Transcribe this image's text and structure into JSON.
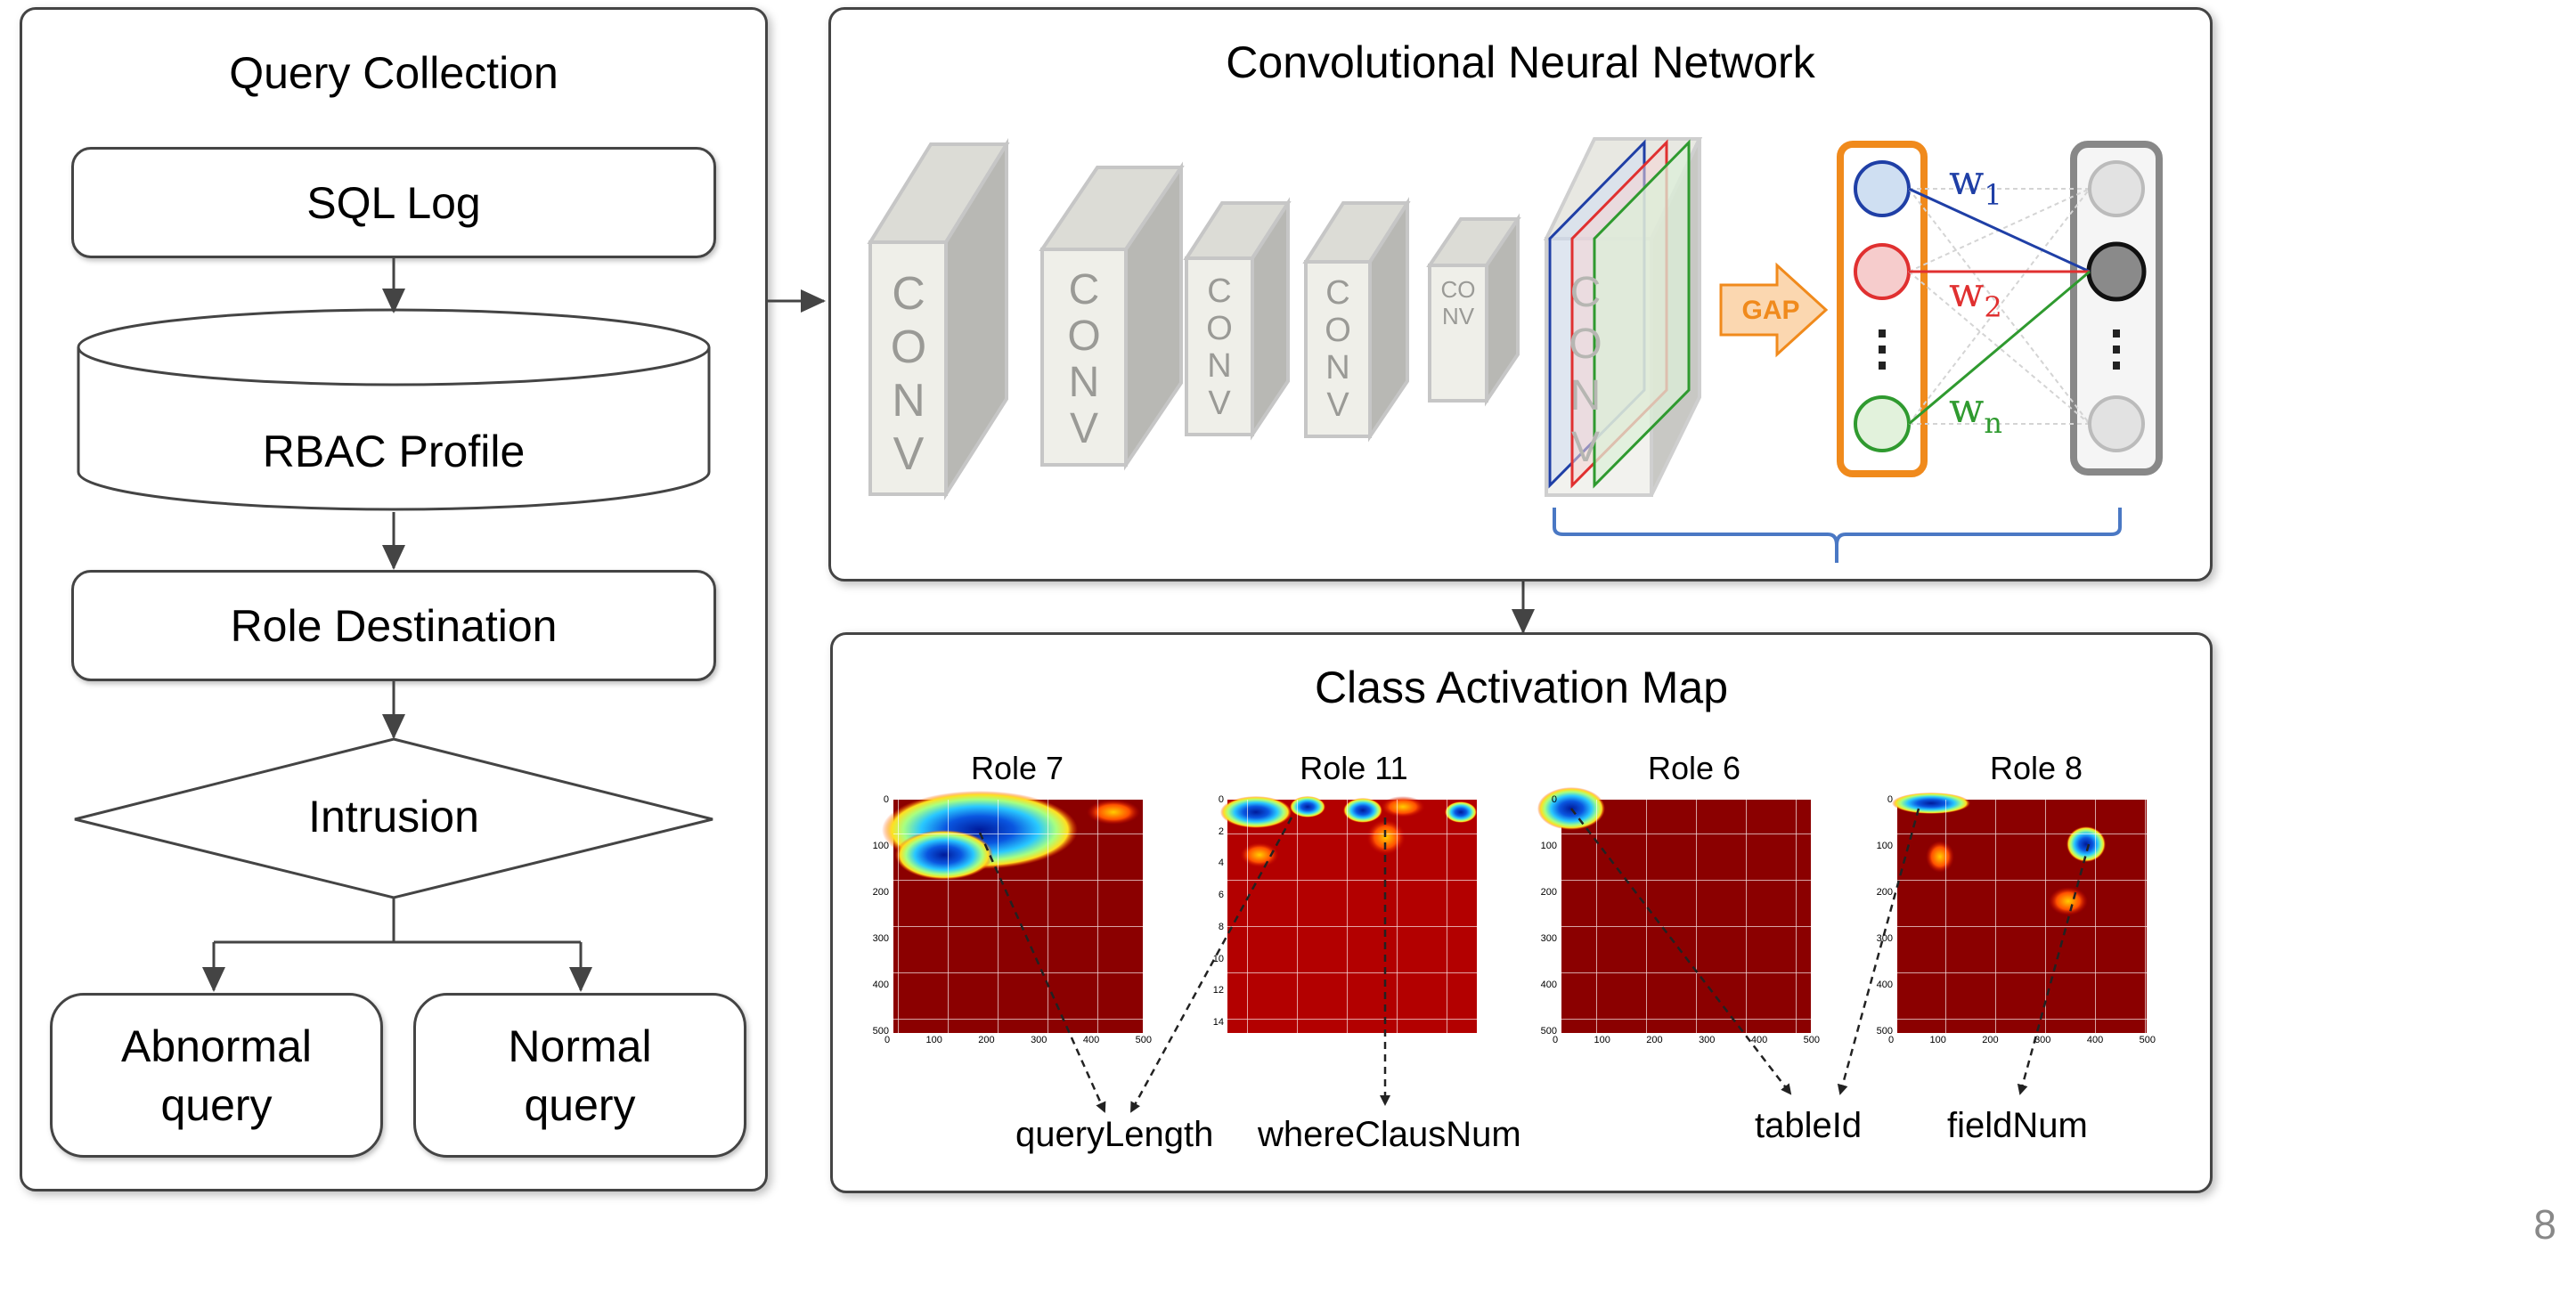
{
  "page_number": "8",
  "query_collection": {
    "title": "Query Collection",
    "sql_log": "SQL Log",
    "rbac_profile": "RBAC Profile",
    "role_destination": "Role Destination",
    "intrusion": "Intrusion",
    "abnormal_query": "Abnormal\nquery",
    "normal_query": "Normal\nquery"
  },
  "cnn": {
    "title": "Convolutional Neural Network",
    "conv_label": "CONV",
    "gap_label": "GAP",
    "weights": {
      "w1": "w",
      "w1_sub": "1",
      "w2": "w",
      "w2_sub": "2",
      "wn": "w",
      "wn_sub": "n"
    },
    "colors": {
      "blue": "#1f3fa6",
      "red": "#e03030",
      "green": "#2f9a2f",
      "orange": "#f08a1c"
    }
  },
  "cam": {
    "title": "Class Activation Map",
    "roles": [
      "Role 7",
      "Role 11",
      "Role 6",
      "Role 8"
    ],
    "features": [
      "queryLength",
      "whereClausNum",
      "tableId",
      "fieldNum"
    ],
    "axes": {
      "role7": {
        "x": [
          "0",
          "100",
          "200",
          "300",
          "400",
          "500"
        ],
        "y": [
          "0",
          "100",
          "200",
          "300",
          "400",
          "500"
        ]
      },
      "role11": {
        "x": [],
        "y": [
          "0",
          "2",
          "4",
          "6",
          "8",
          "10",
          "12",
          "14"
        ]
      },
      "role6": {
        "x": [
          "0",
          "100",
          "200",
          "300",
          "400",
          "500"
        ],
        "y": [
          "0",
          "100",
          "200",
          "300",
          "400",
          "500"
        ]
      },
      "role8": {
        "x": [
          "0",
          "100",
          "200",
          "300",
          "400",
          "500"
        ],
        "y": [
          "0",
          "100",
          "200",
          "300",
          "400",
          "500"
        ]
      }
    }
  }
}
